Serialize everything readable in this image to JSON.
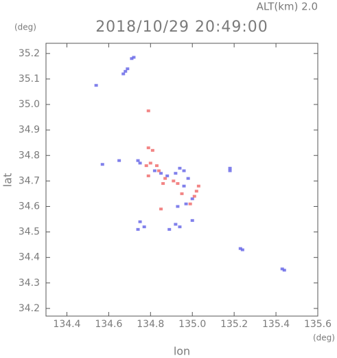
{
  "chart_data": {
    "type": "scatter",
    "title": "2018/10/29 20:49:00",
    "subtitle": "ALT(km) 2.0",
    "y_unit": "(deg)",
    "x_unit": "(deg)",
    "x_label": "lon",
    "y_label": "lat",
    "xlim": [
      134.3,
      135.6
    ],
    "xticks": [
      134.4,
      134.6,
      134.8,
      {
        "value": 135,
        "label": "135.0"
      },
      135.2,
      135.4,
      135.6
    ],
    "ylim": [
      34.17,
      35.24
    ],
    "yticks": [
      34.2,
      34.3,
      34.4,
      34.5,
      34.6,
      34.7,
      34.8,
      34.9,
      {
        "value": 35,
        "label": "35.0"
      },
      35.1,
      35.2
    ],
    "series": [
      {
        "color": "#6a6ae8",
        "x": [
          134.72,
          134.71,
          134.69,
          134.68,
          134.67,
          134.54,
          134.65,
          134.57,
          134.74,
          134.75,
          134.82,
          134.85,
          134.88,
          134.94,
          134.96,
          134.92,
          134.98,
          134.96,
          135.0,
          134.97,
          134.93,
          134.92,
          134.94,
          134.89,
          134.75,
          134.74,
          134.77,
          135.0,
          135.18,
          135.18,
          135.23,
          135.24,
          135.43,
          135.44
        ],
        "values": [
          35.185,
          35.18,
          35.14,
          35.13,
          35.12,
          35.075,
          34.78,
          34.765,
          34.78,
          34.77,
          34.74,
          34.73,
          34.72,
          34.75,
          34.74,
          34.73,
          34.71,
          34.68,
          34.63,
          34.61,
          34.6,
          34.53,
          34.52,
          34.51,
          34.54,
          34.51,
          34.52,
          34.545,
          34.75,
          34.74,
          34.435,
          34.43,
          34.355,
          34.35
        ]
      },
      {
        "color": "#f07070",
        "x": [
          134.79,
          134.79,
          134.81,
          134.8,
          134.83,
          134.84,
          134.79,
          134.87,
          134.91,
          134.93,
          135.03,
          135.02,
          135.01,
          134.99,
          134.95,
          134.85,
          134.78,
          134.86
        ],
        "values": [
          34.975,
          34.83,
          34.82,
          34.77,
          34.76,
          34.74,
          34.72,
          34.71,
          34.7,
          34.69,
          34.68,
          34.66,
          34.64,
          34.61,
          34.65,
          34.59,
          34.76,
          34.69
        ]
      }
    ]
  }
}
